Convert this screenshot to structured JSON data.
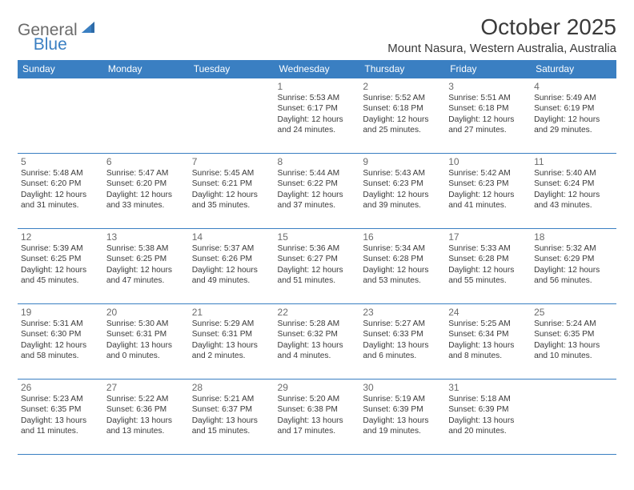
{
  "logo": {
    "general": "General",
    "blue": "Blue",
    "accent_color": "#3a7fc2",
    "text_color": "#6b6b6b"
  },
  "title": "October 2025",
  "location": "Mount Nasura, Western Australia, Australia",
  "colors": {
    "header_bg": "#3a7fc2",
    "header_text": "#ffffff",
    "border": "#3a7fc2",
    "daynum": "#6b6b6b",
    "body_text": "#3a3a3a",
    "background": "#ffffff"
  },
  "typography": {
    "title_fontsize": 28,
    "location_fontsize": 15,
    "dayheader_fontsize": 12,
    "daynum_fontsize": 12,
    "body_fontsize": 10.2
  },
  "day_headers": [
    "Sunday",
    "Monday",
    "Tuesday",
    "Wednesday",
    "Thursday",
    "Friday",
    "Saturday"
  ],
  "weeks": [
    [
      null,
      null,
      null,
      {
        "n": "1",
        "sr": "5:53 AM",
        "ss": "6:17 PM",
        "dh": 12,
        "dm": 24
      },
      {
        "n": "2",
        "sr": "5:52 AM",
        "ss": "6:18 PM",
        "dh": 12,
        "dm": 25
      },
      {
        "n": "3",
        "sr": "5:51 AM",
        "ss": "6:18 PM",
        "dh": 12,
        "dm": 27
      },
      {
        "n": "4",
        "sr": "5:49 AM",
        "ss": "6:19 PM",
        "dh": 12,
        "dm": 29
      }
    ],
    [
      {
        "n": "5",
        "sr": "5:48 AM",
        "ss": "6:20 PM",
        "dh": 12,
        "dm": 31
      },
      {
        "n": "6",
        "sr": "5:47 AM",
        "ss": "6:20 PM",
        "dh": 12,
        "dm": 33
      },
      {
        "n": "7",
        "sr": "5:45 AM",
        "ss": "6:21 PM",
        "dh": 12,
        "dm": 35
      },
      {
        "n": "8",
        "sr": "5:44 AM",
        "ss": "6:22 PM",
        "dh": 12,
        "dm": 37
      },
      {
        "n": "9",
        "sr": "5:43 AM",
        "ss": "6:23 PM",
        "dh": 12,
        "dm": 39
      },
      {
        "n": "10",
        "sr": "5:42 AM",
        "ss": "6:23 PM",
        "dh": 12,
        "dm": 41
      },
      {
        "n": "11",
        "sr": "5:40 AM",
        "ss": "6:24 PM",
        "dh": 12,
        "dm": 43
      }
    ],
    [
      {
        "n": "12",
        "sr": "5:39 AM",
        "ss": "6:25 PM",
        "dh": 12,
        "dm": 45
      },
      {
        "n": "13",
        "sr": "5:38 AM",
        "ss": "6:25 PM",
        "dh": 12,
        "dm": 47
      },
      {
        "n": "14",
        "sr": "5:37 AM",
        "ss": "6:26 PM",
        "dh": 12,
        "dm": 49
      },
      {
        "n": "15",
        "sr": "5:36 AM",
        "ss": "6:27 PM",
        "dh": 12,
        "dm": 51
      },
      {
        "n": "16",
        "sr": "5:34 AM",
        "ss": "6:28 PM",
        "dh": 12,
        "dm": 53
      },
      {
        "n": "17",
        "sr": "5:33 AM",
        "ss": "6:28 PM",
        "dh": 12,
        "dm": 55
      },
      {
        "n": "18",
        "sr": "5:32 AM",
        "ss": "6:29 PM",
        "dh": 12,
        "dm": 56
      }
    ],
    [
      {
        "n": "19",
        "sr": "5:31 AM",
        "ss": "6:30 PM",
        "dh": 12,
        "dm": 58
      },
      {
        "n": "20",
        "sr": "5:30 AM",
        "ss": "6:31 PM",
        "dh": 13,
        "dm": 0
      },
      {
        "n": "21",
        "sr": "5:29 AM",
        "ss": "6:31 PM",
        "dh": 13,
        "dm": 2
      },
      {
        "n": "22",
        "sr": "5:28 AM",
        "ss": "6:32 PM",
        "dh": 13,
        "dm": 4
      },
      {
        "n": "23",
        "sr": "5:27 AM",
        "ss": "6:33 PM",
        "dh": 13,
        "dm": 6
      },
      {
        "n": "24",
        "sr": "5:25 AM",
        "ss": "6:34 PM",
        "dh": 13,
        "dm": 8
      },
      {
        "n": "25",
        "sr": "5:24 AM",
        "ss": "6:35 PM",
        "dh": 13,
        "dm": 10
      }
    ],
    [
      {
        "n": "26",
        "sr": "5:23 AM",
        "ss": "6:35 PM",
        "dh": 13,
        "dm": 11
      },
      {
        "n": "27",
        "sr": "5:22 AM",
        "ss": "6:36 PM",
        "dh": 13,
        "dm": 13
      },
      {
        "n": "28",
        "sr": "5:21 AM",
        "ss": "6:37 PM",
        "dh": 13,
        "dm": 15
      },
      {
        "n": "29",
        "sr": "5:20 AM",
        "ss": "6:38 PM",
        "dh": 13,
        "dm": 17
      },
      {
        "n": "30",
        "sr": "5:19 AM",
        "ss": "6:39 PM",
        "dh": 13,
        "dm": 19
      },
      {
        "n": "31",
        "sr": "5:18 AM",
        "ss": "6:39 PM",
        "dh": 13,
        "dm": 20
      },
      null
    ]
  ],
  "labels": {
    "sunrise": "Sunrise:",
    "sunset": "Sunset:",
    "daylight": "Daylight:",
    "hours": "hours",
    "and": "and",
    "minutes": "minutes."
  }
}
